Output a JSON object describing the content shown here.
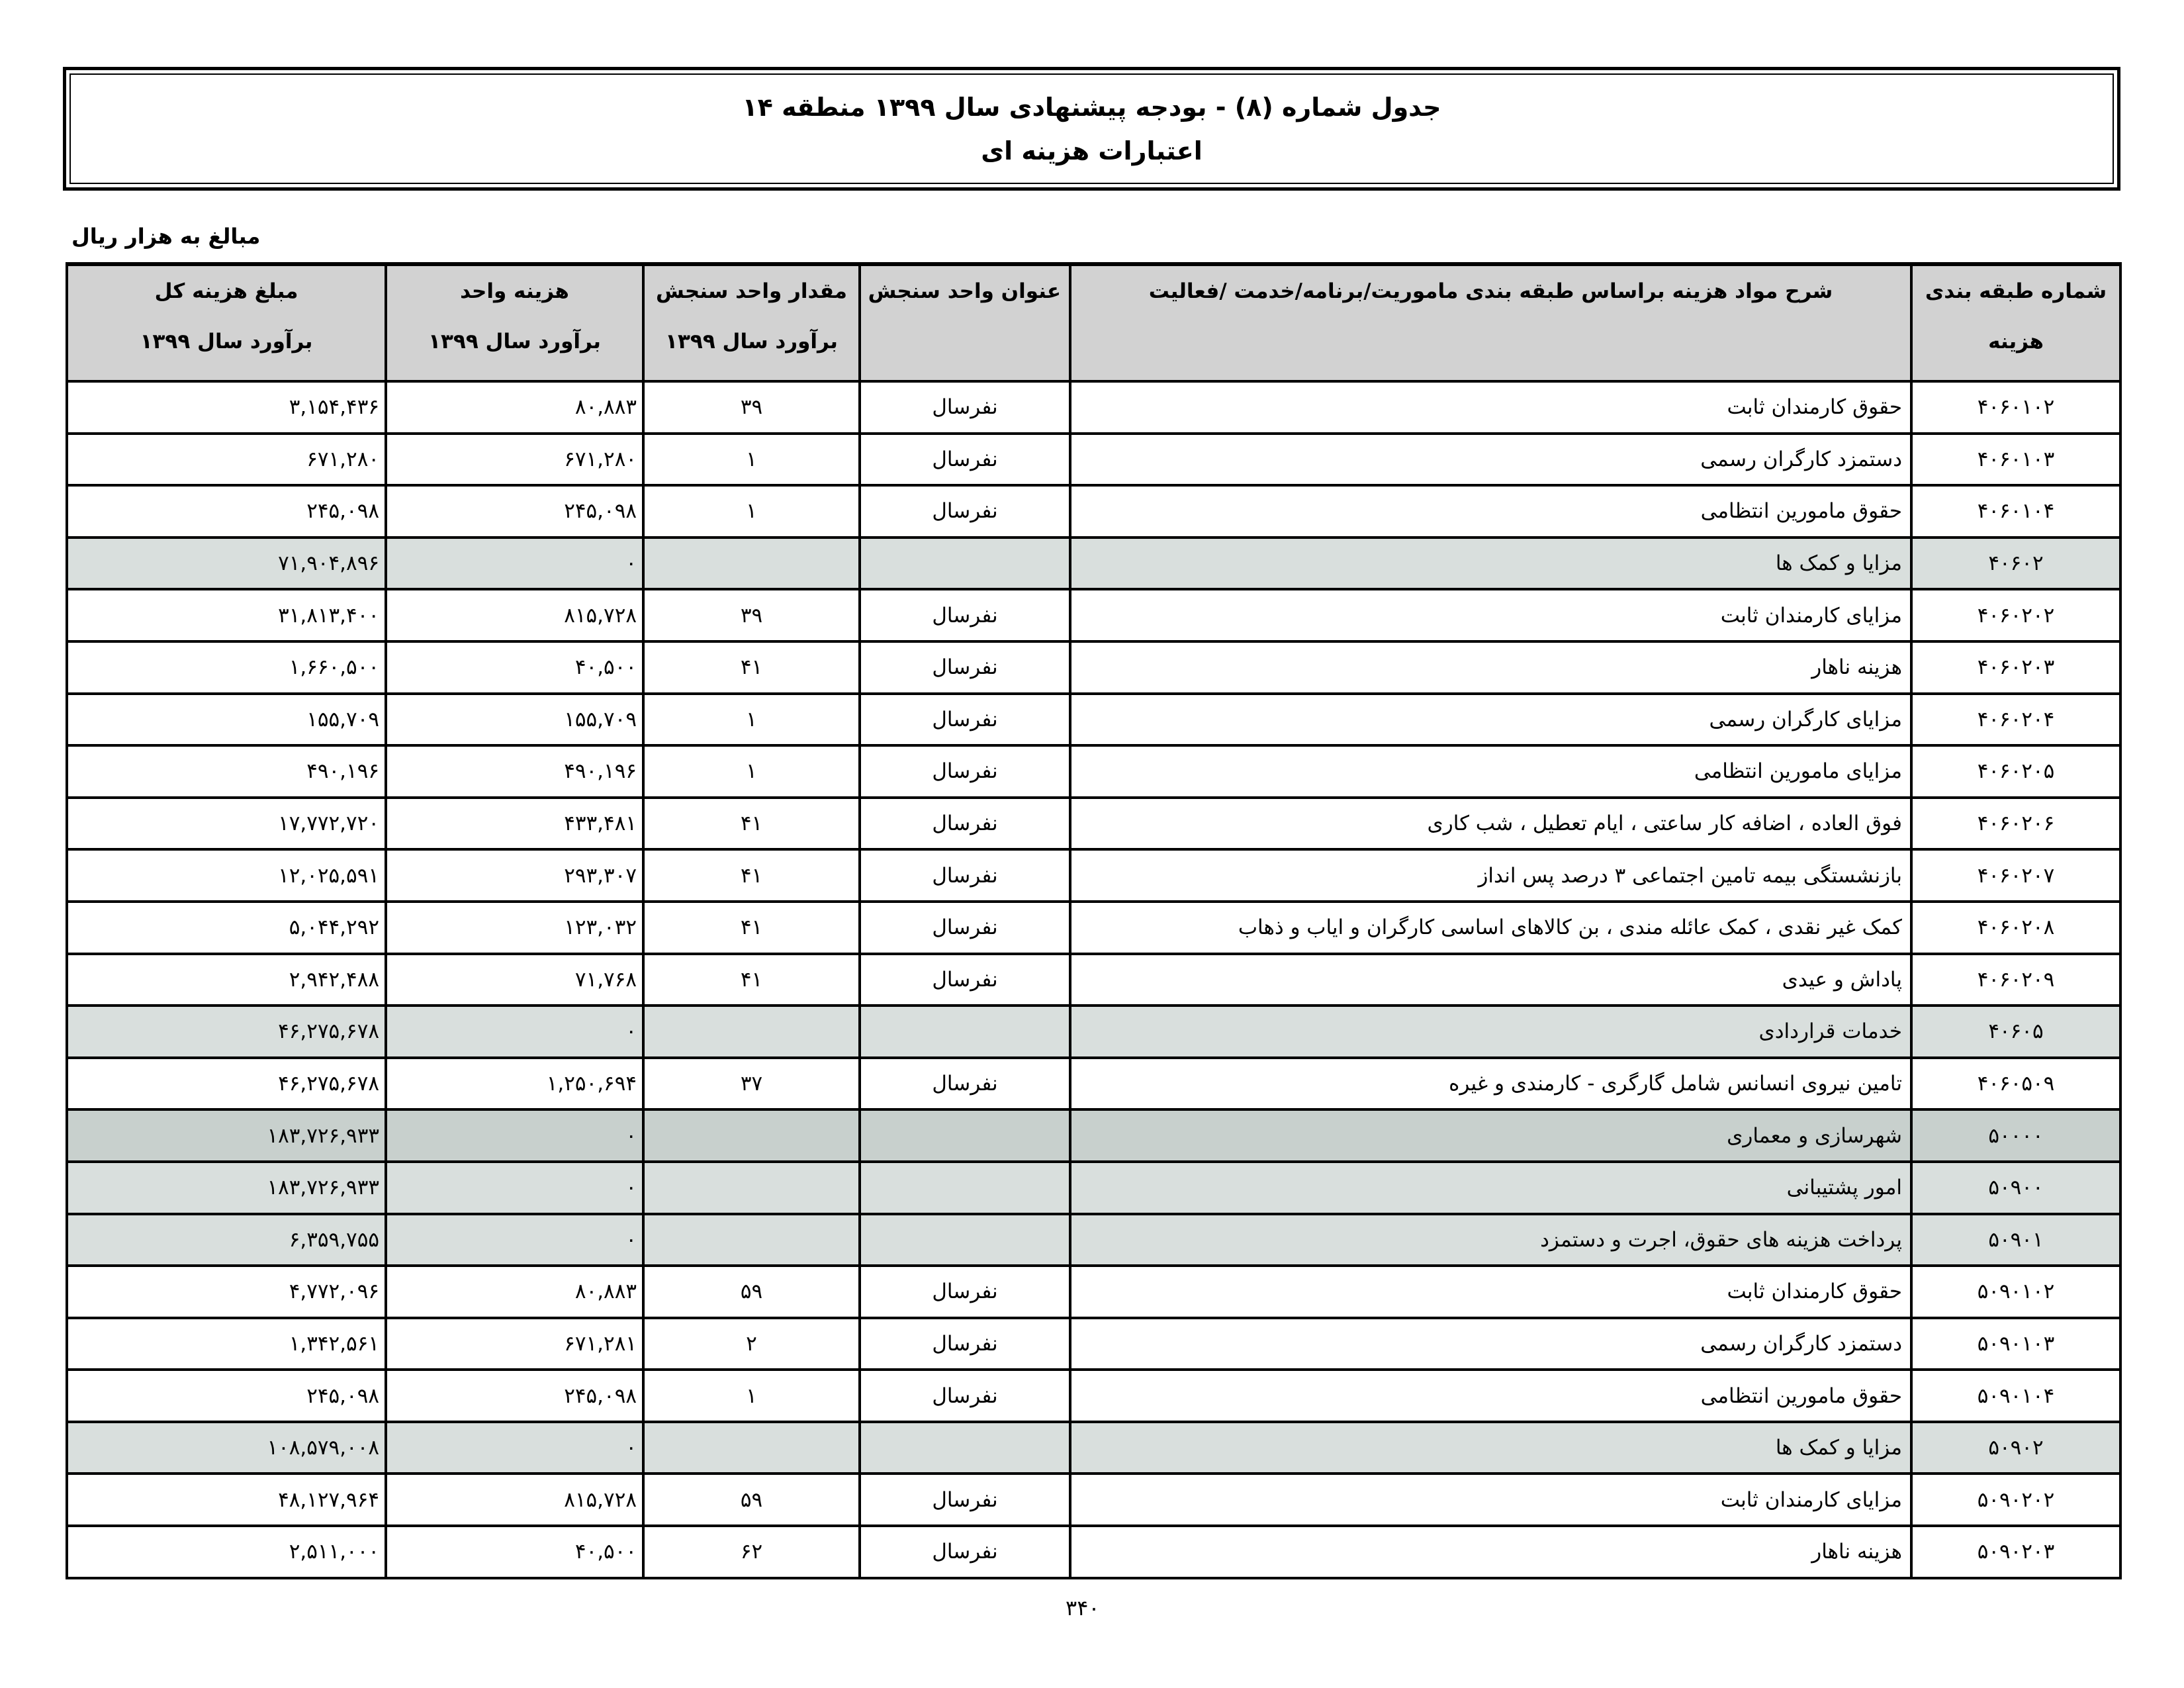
{
  "title": {
    "line1": "جدول شماره (۸) - بودجه پیشنهادی سال ۱۳۹۹ منطقه ۱۴",
    "line2": "اعتبارات هزینه ای"
  },
  "unit_note": "مبالغ به هزار ریال",
  "columns": [
    {
      "l1": "شماره طبقه بندی",
      "l2": "هزینه"
    },
    {
      "l1": "شرح مواد هزینه براساس طبقه بندی ماموریت/برنامه/خدمت /فعالیت",
      "l2": ""
    },
    {
      "l1": "عنوان واحد سنجش",
      "l2": ""
    },
    {
      "l1": "مقدار واحد سنجش",
      "l2": "برآورد سال ۱۳۹۹"
    },
    {
      "l1": "هزینه واحد",
      "l2": "برآورد سال ۱۳۹۹"
    },
    {
      "l1": "مبلغ هزینه کل",
      "l2": "برآورد سال ۱۳۹۹"
    }
  ],
  "shading": {
    "header": "#d2d2d2",
    "subtotal": "#d9dfdd",
    "major": "#c8d0cd"
  },
  "rows": [
    {
      "code": "۴۰۶۰۱۰۲",
      "desc": "حقوق کارمندان ثابت",
      "unit": "نفرسال",
      "qty": "۳۹",
      "unit_cost": "۸۰,۸۸۳",
      "total": "۳,۱۵۴,۴۳۶",
      "type": "item"
    },
    {
      "code": "۴۰۶۰۱۰۳",
      "desc": "دستمزد کارگران رسمی",
      "unit": "نفرسال",
      "qty": "۱",
      "unit_cost": "۶۷۱,۲۸۰",
      "total": "۶۷۱,۲۸۰",
      "type": "item"
    },
    {
      "code": "۴۰۶۰۱۰۴",
      "desc": "حقوق مامورین انتظامی",
      "unit": "نفرسال",
      "qty": "۱",
      "unit_cost": "۲۴۵,۰۹۸",
      "total": "۲۴۵,۰۹۸",
      "type": "item"
    },
    {
      "code": "۴۰۶۰۲",
      "desc": "مزایا و کمک ها",
      "unit": "",
      "qty": "",
      "unit_cost": "۰",
      "total": "۷۱,۹۰۴,۸۹۶",
      "type": "sub"
    },
    {
      "code": "۴۰۶۰۲۰۲",
      "desc": "مزایای کارمندان ثابت",
      "unit": "نفرسال",
      "qty": "۳۹",
      "unit_cost": "۸۱۵,۷۲۸",
      "total": "۳۱,۸۱۳,۴۰۰",
      "type": "item"
    },
    {
      "code": "۴۰۶۰۲۰۳",
      "desc": "هزینه ناهار",
      "unit": "نفرسال",
      "qty": "۴۱",
      "unit_cost": "۴۰,۵۰۰",
      "total": "۱,۶۶۰,۵۰۰",
      "type": "item"
    },
    {
      "code": "۴۰۶۰۲۰۴",
      "desc": "مزایای کارگران رسمی",
      "unit": "نفرسال",
      "qty": "۱",
      "unit_cost": "۱۵۵,۷۰۹",
      "total": "۱۵۵,۷۰۹",
      "type": "item"
    },
    {
      "code": "۴۰۶۰۲۰۵",
      "desc": "مزایای مامورین انتظامی",
      "unit": "نفرسال",
      "qty": "۱",
      "unit_cost": "۴۹۰,۱۹۶",
      "total": "۴۹۰,۱۹۶",
      "type": "item"
    },
    {
      "code": "۴۰۶۰۲۰۶",
      "desc": "فوق العاده ، اضافه کار ساعتی ، ایام تعطیل ، شب کاری",
      "unit": "نفرسال",
      "qty": "۴۱",
      "unit_cost": "۴۳۳,۴۸۱",
      "total": "۱۷,۷۷۲,۷۲۰",
      "type": "item"
    },
    {
      "code": "۴۰۶۰۲۰۷",
      "desc": "بازنشستگی بیمه تامین اجتماعی ۳ درصد پس انداز",
      "unit": "نفرسال",
      "qty": "۴۱",
      "unit_cost": "۲۹۳,۳۰۷",
      "total": "۱۲,۰۲۵,۵۹۱",
      "type": "item"
    },
    {
      "code": "۴۰۶۰۲۰۸",
      "desc": "کمک غیر نقدی ، کمک عائله مندی ، بن کالاهای اساسی کارگران و ایاب و ذهاب",
      "unit": "نفرسال",
      "qty": "۴۱",
      "unit_cost": "۱۲۳,۰۳۲",
      "total": "۵,۰۴۴,۲۹۲",
      "type": "item"
    },
    {
      "code": "۴۰۶۰۲۰۹",
      "desc": "پاداش و عیدی",
      "unit": "نفرسال",
      "qty": "۴۱",
      "unit_cost": "۷۱,۷۶۸",
      "total": "۲,۹۴۲,۴۸۸",
      "type": "item"
    },
    {
      "code": "۴۰۶۰۵",
      "desc": "خدمات قراردادی",
      "unit": "",
      "qty": "",
      "unit_cost": "۰",
      "total": "۴۶,۲۷۵,۶۷۸",
      "type": "sub"
    },
    {
      "code": "۴۰۶۰۵۰۹",
      "desc": "تامین نیروی انسانس شامل گارگری - کارمندی و غیره",
      "unit": "نفرسال",
      "qty": "۳۷",
      "unit_cost": "۱,۲۵۰,۶۹۴",
      "total": "۴۶,۲۷۵,۶۷۸",
      "type": "item"
    },
    {
      "code": "۵۰۰۰۰",
      "desc": "شهرسازی و معماری",
      "unit": "",
      "qty": "",
      "unit_cost": "۰",
      "total": "۱۸۳,۷۲۶,۹۳۳",
      "type": "major"
    },
    {
      "code": "۵۰۹۰۰",
      "desc": "امور پشتیبانی",
      "unit": "",
      "qty": "",
      "unit_cost": "۰",
      "total": "۱۸۳,۷۲۶,۹۳۳",
      "type": "sub"
    },
    {
      "code": "۵۰۹۰۱",
      "desc": "پرداخت هزینه های حقوق، اجرت و دستمزد",
      "unit": "",
      "qty": "",
      "unit_cost": "۰",
      "total": "۶,۳۵۹,۷۵۵",
      "type": "sub"
    },
    {
      "code": "۵۰۹۰۱۰۲",
      "desc": "حقوق کارمندان ثابت",
      "unit": "نفرسال",
      "qty": "۵۹",
      "unit_cost": "۸۰,۸۸۳",
      "total": "۴,۷۷۲,۰۹۶",
      "type": "item"
    },
    {
      "code": "۵۰۹۰۱۰۳",
      "desc": "دستمزد کارگران رسمی",
      "unit": "نفرسال",
      "qty": "۲",
      "unit_cost": "۶۷۱,۲۸۱",
      "total": "۱,۳۴۲,۵۶۱",
      "type": "item"
    },
    {
      "code": "۵۰۹۰۱۰۴",
      "desc": "حقوق مامورین انتظامی",
      "unit": "نفرسال",
      "qty": "۱",
      "unit_cost": "۲۴۵,۰۹۸",
      "total": "۲۴۵,۰۹۸",
      "type": "item"
    },
    {
      "code": "۵۰۹۰۲",
      "desc": "مزایا و کمک ها",
      "unit": "",
      "qty": "",
      "unit_cost": "۰",
      "total": "۱۰۸,۵۷۹,۰۰۸",
      "type": "sub"
    },
    {
      "code": "۵۰۹۰۲۰۲",
      "desc": "مزایای کارمندان ثابت",
      "unit": "نفرسال",
      "qty": "۵۹",
      "unit_cost": "۸۱۵,۷۲۸",
      "total": "۴۸,۱۲۷,۹۶۴",
      "type": "item"
    },
    {
      "code": "۵۰۹۰۲۰۳",
      "desc": "هزینه ناهار",
      "unit": "نفرسال",
      "qty": "۶۲",
      "unit_cost": "۴۰,۵۰۰",
      "total": "۲,۵۱۱,۰۰۰",
      "type": "item"
    }
  ],
  "page_number": "۳۴۰"
}
